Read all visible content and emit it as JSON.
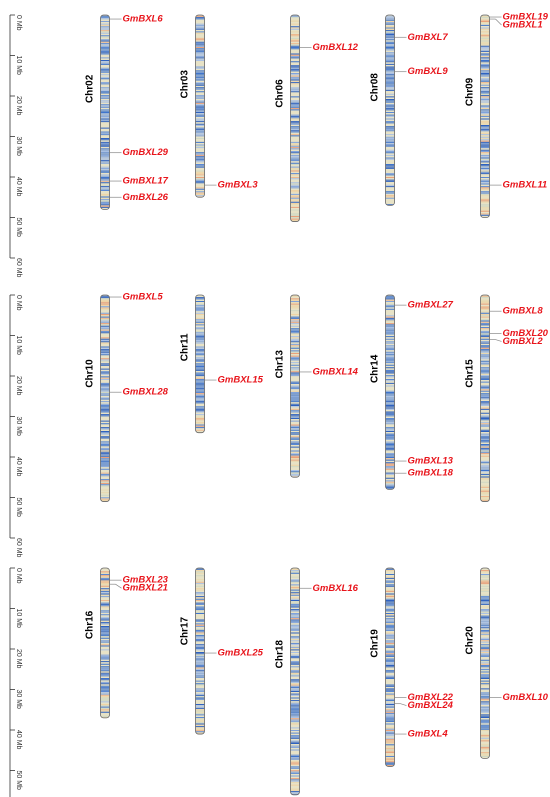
{
  "ruler": {
    "ticks": [
      {
        "value": 0,
        "label": "0 Mb"
      },
      {
        "value": 10,
        "label": "10 Mb"
      },
      {
        "value": 20,
        "label": "20 Mb"
      },
      {
        "value": 30,
        "label": "30 Mb"
      },
      {
        "value": 40,
        "label": "40 Mb"
      },
      {
        "value": 50,
        "label": "50 Mb"
      },
      {
        "value": 60,
        "label": "60 Mb"
      }
    ]
  },
  "panels": [
    {
      "chromosomes": [
        {
          "name": "Chr02",
          "length": 48,
          "genes": [
            {
              "name": "GmBXL6",
              "position": 1
            },
            {
              "name": "GmBXL29",
              "position": 34
            },
            {
              "name": "GmBXL17",
              "position": 41
            },
            {
              "name": "GmBXL26",
              "position": 45
            }
          ]
        },
        {
          "name": "Chr03",
          "length": 45,
          "genes": [
            {
              "name": "GmBXL3",
              "position": 42
            }
          ]
        },
        {
          "name": "Chr06",
          "length": 51,
          "genes": [
            {
              "name": "GmBXL12",
              "position": 8
            }
          ]
        },
        {
          "name": "Chr08",
          "length": 47,
          "genes": [
            {
              "name": "GmBXL7",
              "position": 5.5
            },
            {
              "name": "GmBXL9",
              "position": 14
            }
          ]
        },
        {
          "name": "Chr09",
          "length": 50,
          "genes": [
            {
              "name": "GmBXL19",
              "position": 0.5
            },
            {
              "name": "GmBXL1",
              "position": 1
            },
            {
              "name": "GmBXL11",
              "position": 42
            }
          ]
        }
      ]
    },
    {
      "chromosomes": [
        {
          "name": "Chr10",
          "length": 51,
          "genes": [
            {
              "name": "GmBXL5",
              "position": 0.5
            },
            {
              "name": "GmBXL28",
              "position": 24
            }
          ]
        },
        {
          "name": "Chr11",
          "length": 34,
          "genes": [
            {
              "name": "GmBXL15",
              "position": 21
            }
          ]
        },
        {
          "name": "Chr13",
          "length": 45,
          "genes": [
            {
              "name": "GmBXL14",
              "position": 19
            }
          ]
        },
        {
          "name": "Chr14",
          "length": 48,
          "genes": [
            {
              "name": "GmBXL27",
              "position": 2.5
            },
            {
              "name": "GmBXL13",
              "position": 41
            },
            {
              "name": "GmBXL18",
              "position": 44
            }
          ]
        },
        {
          "name": "Chr15",
          "length": 51,
          "genes": [
            {
              "name": "GmBXL8",
              "position": 4
            },
            {
              "name": "GmBXL20",
              "position": 9.5
            },
            {
              "name": "GmBXL2",
              "position": 11
            }
          ]
        }
      ]
    },
    {
      "chromosomes": [
        {
          "name": "Chr16",
          "length": 37,
          "genes": [
            {
              "name": "GmBXL23",
              "position": 3
            },
            {
              "name": "GmBXL21",
              "position": 4
            }
          ]
        },
        {
          "name": "Chr17",
          "length": 41,
          "genes": [
            {
              "name": "GmBXL25",
              "position": 21
            }
          ]
        },
        {
          "name": "Chr18",
          "length": 56,
          "genes": [
            {
              "name": "GmBXL16",
              "position": 5
            }
          ]
        },
        {
          "name": "Chr19",
          "length": 49,
          "genes": [
            {
              "name": "GmBXL22",
              "position": 32
            },
            {
              "name": "GmBXL24",
              "position": 33.5
            },
            {
              "name": "GmBXL4",
              "position": 41
            }
          ]
        },
        {
          "name": "Chr20",
          "length": 47,
          "genes": [
            {
              "name": "GmBXL10",
              "position": 32
            }
          ]
        }
      ]
    }
  ]
}
